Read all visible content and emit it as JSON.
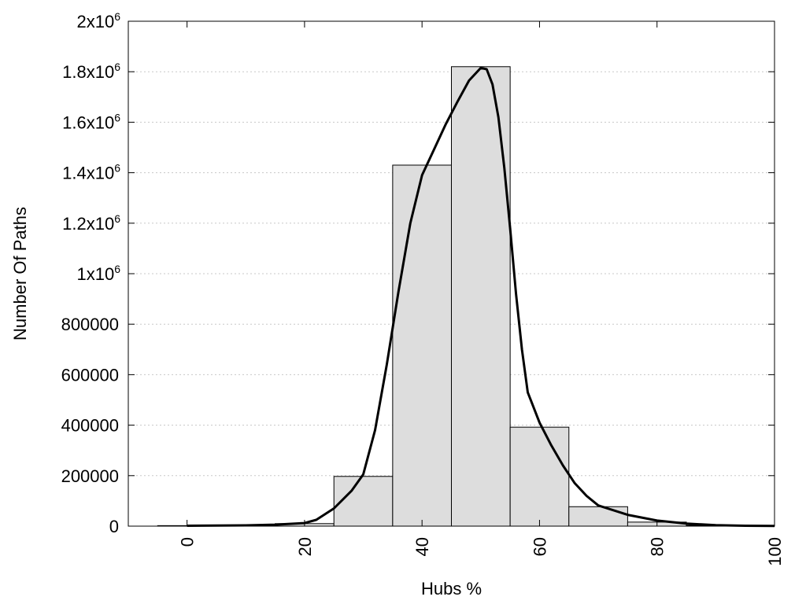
{
  "chart_data": {
    "type": "bar",
    "xlabel": "Hubs %",
    "ylabel": "Number Of Paths",
    "xlim": [
      -10,
      100
    ],
    "ylim": [
      0,
      2000000
    ],
    "grid": "horizontal dotted",
    "x_ticks": [
      {
        "value": 0,
        "label": "0"
      },
      {
        "value": 20,
        "label": "20"
      },
      {
        "value": 40,
        "label": "40"
      },
      {
        "value": 60,
        "label": "60"
      },
      {
        "value": 80,
        "label": "80"
      },
      {
        "value": 100,
        "label": "100"
      }
    ],
    "y_ticks": [
      {
        "value": 0,
        "label": "0"
      },
      {
        "value": 200000,
        "label": "200000"
      },
      {
        "value": 400000,
        "label": "400000"
      },
      {
        "value": 600000,
        "label": "600000"
      },
      {
        "value": 800000,
        "label": "800000"
      },
      {
        "value": 1000000,
        "base": "1x10",
        "exp": "6"
      },
      {
        "value": 1200000,
        "base": "1.2x10",
        "exp": "6"
      },
      {
        "value": 1400000,
        "base": "1.4x10",
        "exp": "6"
      },
      {
        "value": 1600000,
        "base": "1.6x10",
        "exp": "6"
      },
      {
        "value": 1800000,
        "base": "1.8x10",
        "exp": "6"
      },
      {
        "value": 2000000,
        "base": "2x10",
        "exp": "6"
      }
    ],
    "bars": {
      "bin_width": 10,
      "centers": [
        0,
        10,
        20,
        30,
        40,
        50,
        60,
        70,
        80,
        90,
        100
      ],
      "values": [
        2000,
        3000,
        10000,
        197000,
        1430000,
        1820000,
        392000,
        77000,
        16000,
        3000,
        1000
      ],
      "fill": "#dddddd",
      "stroke": "#000000"
    },
    "curve": {
      "points": [
        [
          0,
          1500
        ],
        [
          10,
          3000
        ],
        [
          15,
          6000
        ],
        [
          20,
          12000
        ],
        [
          22,
          25000
        ],
        [
          25,
          70000
        ],
        [
          28,
          140000
        ],
        [
          30,
          205000
        ],
        [
          32,
          380000
        ],
        [
          34,
          640000
        ],
        [
          36,
          930000
        ],
        [
          38,
          1200000
        ],
        [
          40,
          1390000
        ],
        [
          42,
          1490000
        ],
        [
          44,
          1590000
        ],
        [
          46,
          1680000
        ],
        [
          48,
          1765000
        ],
        [
          50,
          1815000
        ],
        [
          51,
          1810000
        ],
        [
          52,
          1750000
        ],
        [
          53,
          1620000
        ],
        [
          54,
          1420000
        ],
        [
          55,
          1180000
        ],
        [
          56,
          920000
        ],
        [
          57,
          700000
        ],
        [
          58,
          530000
        ],
        [
          60,
          410000
        ],
        [
          62,
          320000
        ],
        [
          64,
          240000
        ],
        [
          66,
          170000
        ],
        [
          68,
          120000
        ],
        [
          70,
          82000
        ],
        [
          75,
          45000
        ],
        [
          80,
          22000
        ],
        [
          85,
          10000
        ],
        [
          90,
          4000
        ],
        [
          95,
          1500
        ],
        [
          100,
          800
        ]
      ],
      "stroke": "#000000"
    }
  }
}
